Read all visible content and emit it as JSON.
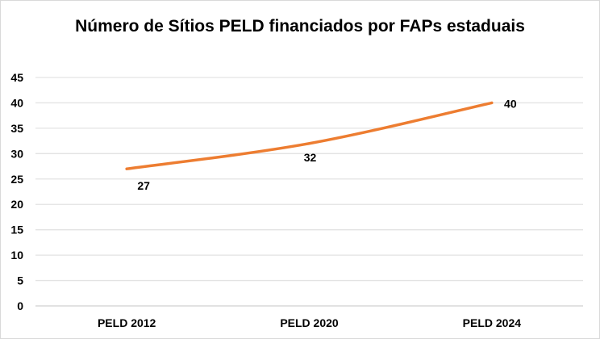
{
  "chart_data": {
    "type": "line",
    "title": "Número de Sítios PELD financiados por FAPs estaduais",
    "categories": [
      "PELD 2012",
      "PELD 2020",
      "PELD 2024"
    ],
    "series": [
      {
        "values": [
          27,
          32,
          40
        ],
        "color": "#ED7D31"
      }
    ],
    "data_labels": [
      "27",
      "32",
      "40"
    ],
    "yticks": [
      "0",
      "5",
      "10",
      "15",
      "20",
      "25",
      "30",
      "35",
      "40",
      "45"
    ],
    "ylim": [
      0,
      45
    ],
    "grid": true,
    "legend": "none",
    "xlabel": "",
    "ylabel": ""
  }
}
